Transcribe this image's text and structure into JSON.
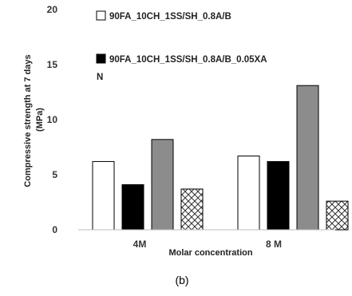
{
  "chart_data": {
    "type": "bar",
    "caption": "(b)",
    "xlabel": "Molar concentration",
    "ylabel_lines": [
      "Compressive strength at 7 days",
      "(MPa)"
    ],
    "ylim": [
      0,
      20
    ],
    "yticks": [
      0,
      5,
      10,
      15,
      20
    ],
    "grid": false,
    "legend_position": "top",
    "categories": [
      "4M",
      "8 M"
    ],
    "series": [
      {
        "name": "90FA_10CH_1SS/SH_0.8A/B",
        "color": "#ffffff",
        "values": [
          6.2,
          6.7
        ]
      },
      {
        "name": "90FA_10CH_1SS/SH_0.8A/B_0.05XA",
        "name_wrap": "N",
        "color": "#000000",
        "values": [
          4.1,
          6.2
        ]
      },
      {
        "name": "",
        "color": "#8c8c8c",
        "values": [
          8.2,
          13.1
        ]
      },
      {
        "name": "",
        "color": "hatched",
        "values": [
          3.7,
          2.6
        ]
      }
    ]
  }
}
